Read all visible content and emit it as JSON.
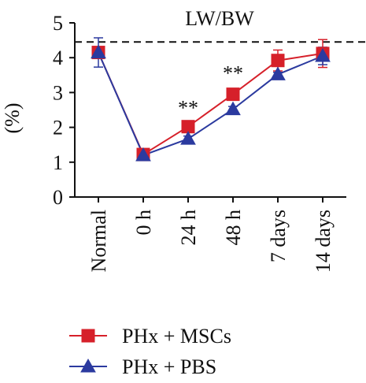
{
  "chart_data": {
    "type": "line",
    "title": "LW/BW",
    "ylabel": "(%)",
    "xlabel": "",
    "categories": [
      "Normal",
      "0 h",
      "24 h",
      "48 h",
      "7 days",
      "14 days"
    ],
    "ylim": [
      0,
      5
    ],
    "yticks": [
      "0",
      "1",
      "2",
      "3",
      "4",
      "5"
    ],
    "reference_line": 4.45,
    "grid": false,
    "legend_position": "bottom",
    "series": [
      {
        "name": "PHx + MSCs",
        "marker": "square",
        "color": "#d6202a",
        "values": [
          4.15,
          1.22,
          2.02,
          2.95,
          3.92,
          4.12
        ],
        "errors": [
          0.1,
          0.05,
          0.1,
          0.15,
          0.3,
          0.4
        ]
      },
      {
        "name": "PHx + PBS",
        "marker": "triangle",
        "color": "#2b3a9f",
        "values": [
          4.15,
          1.2,
          1.67,
          2.52,
          3.52,
          4.05
        ],
        "errors": [
          0.42,
          0.05,
          0.08,
          0.08,
          0.06,
          0.25
        ]
      }
    ],
    "annotations": [
      {
        "category": "24 h",
        "text": "**",
        "y": 2.5
      },
      {
        "category": "48 h",
        "text": "**",
        "y": 3.5
      }
    ]
  }
}
